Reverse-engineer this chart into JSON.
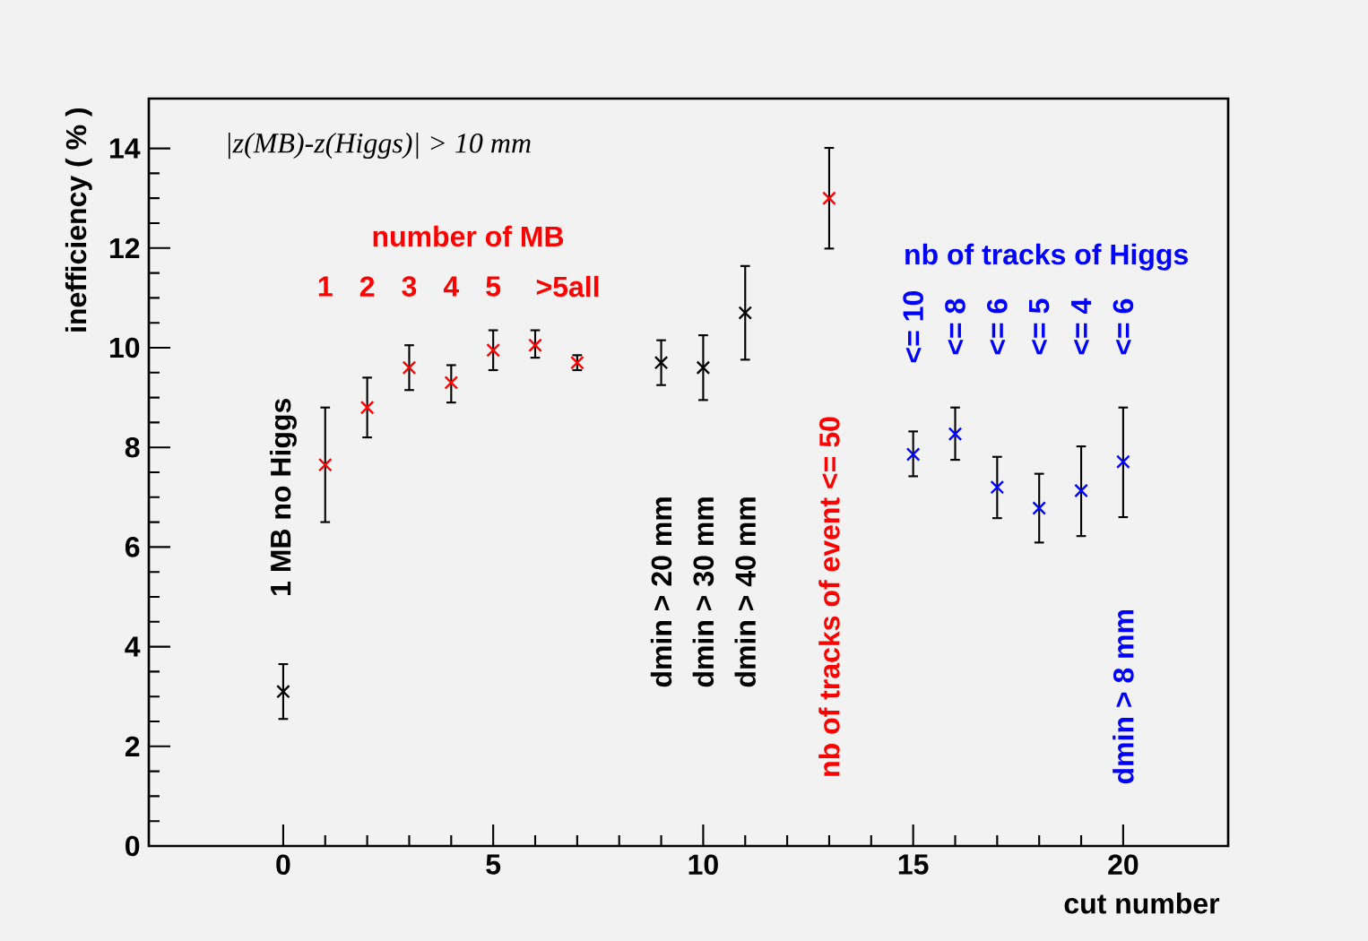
{
  "chart_data": {
    "type": "scatter",
    "xlabel": "cut number",
    "ylabel": "inefficiency ( % )",
    "xlim": [
      -3.2,
      22.5
    ],
    "ylim": [
      0,
      15
    ],
    "xticks": [
      0,
      5,
      10,
      15,
      20
    ],
    "yticks": [
      0,
      2,
      4,
      6,
      8,
      10,
      12,
      14
    ],
    "grid": false,
    "marker": "cross",
    "series": [
      {
        "color": "#000000",
        "x": [
          0,
          9,
          10,
          11
        ],
        "values": [
          3.1,
          9.7,
          9.6,
          10.7
        ],
        "errors": [
          [
            2.55,
            3.65
          ],
          [
            9.25,
            10.15
          ],
          [
            8.95,
            10.25
          ],
          [
            9.76,
            11.64
          ]
        ]
      },
      {
        "color": "#ff0000",
        "x": [
          1,
          2,
          3,
          4,
          5,
          6,
          7,
          13
        ],
        "values": [
          7.65,
          8.8,
          9.6,
          9.3,
          9.95,
          10.05,
          9.7,
          13.0
        ],
        "errors": [
          [
            6.5,
            8.8
          ],
          [
            8.2,
            9.4
          ],
          [
            9.15,
            10.05
          ],
          [
            8.9,
            9.65
          ],
          [
            9.55,
            10.35
          ],
          [
            9.8,
            10.35
          ],
          [
            9.55,
            9.85
          ],
          [
            11.99,
            14.01
          ]
        ]
      },
      {
        "color": "#0000ff",
        "x": [
          15,
          16,
          17,
          18,
          19,
          20
        ],
        "values": [
          7.86,
          8.27,
          7.2,
          6.78,
          7.13,
          7.71
        ],
        "errors": [
          [
            7.42,
            8.32
          ],
          [
            7.75,
            8.8
          ],
          [
            6.58,
            7.81
          ],
          [
            6.09,
            7.47
          ],
          [
            6.22,
            8.02
          ],
          [
            6.6,
            8.8
          ]
        ]
      }
    ],
    "annotations": [
      "|z(MB)-z(Higgs)| > 10 mm",
      "1 MB no Higgs",
      "number of MB",
      "1",
      "2",
      "3",
      "4",
      "5",
      ">5all",
      "dmin > 20  mm",
      "dmin > 30  mm",
      "dmin > 40  mm",
      "nb of tracks of event <= 50",
      "nb of tracks of Higgs",
      "<= 10",
      "<= 8",
      "<= 6",
      "<= 5",
      "<= 4",
      "<= 6",
      "dmin > 8 mm"
    ]
  }
}
